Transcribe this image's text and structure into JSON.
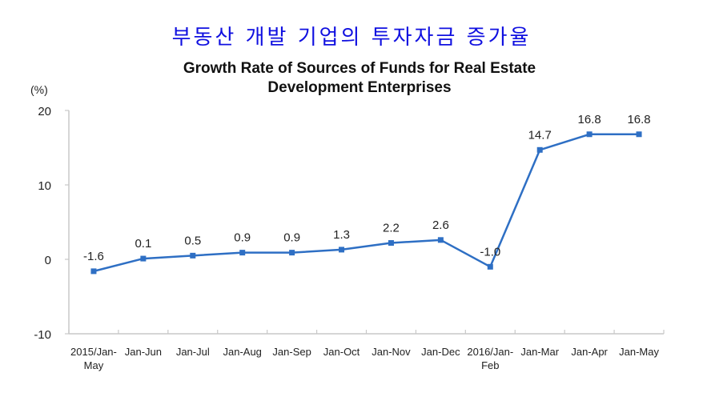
{
  "header": {
    "korean_title": "부동산 개발 기업의 투자자금 증가율"
  },
  "chart_data": {
    "type": "line",
    "title": "Growth Rate of Sources of Funds for Real Estate Development Enterprises",
    "title_lines": [
      "Growth Rate of Sources of Funds for Real Estate",
      "Development Enterprises"
    ],
    "ylabel": "(%)",
    "xlabel": "",
    "ylim": [
      -10,
      20
    ],
    "yticks": [
      -10,
      0,
      10,
      20
    ],
    "grid": false,
    "categories": [
      [
        "2015/Jan-",
        "May"
      ],
      [
        "Jan-Jun"
      ],
      [
        "Jan-Jul"
      ],
      [
        "Jan-Aug"
      ],
      [
        "Jan-Sep"
      ],
      [
        "Jan-Oct"
      ],
      [
        "Jan-Nov"
      ],
      [
        "Jan-Dec"
      ],
      [
        "2016/Jan-",
        "Feb"
      ],
      [
        "Jan-Mar"
      ],
      [
        "Jan-Apr"
      ],
      [
        "Jan-May"
      ]
    ],
    "series": [
      {
        "name": "Growth Rate",
        "color": "#2e6fc4",
        "values": [
          -1.6,
          0.1,
          0.5,
          0.9,
          0.9,
          1.3,
          2.2,
          2.6,
          -1.0,
          14.7,
          16.8,
          16.8
        ],
        "labels": [
          "-1.6",
          "0.1",
          "0.5",
          "0.9",
          "0.9",
          "1.3",
          "2.2",
          "2.6",
          "-1.0",
          "14.7",
          "16.8",
          "16.8"
        ]
      }
    ],
    "axis_color": "#c8c8c8"
  }
}
